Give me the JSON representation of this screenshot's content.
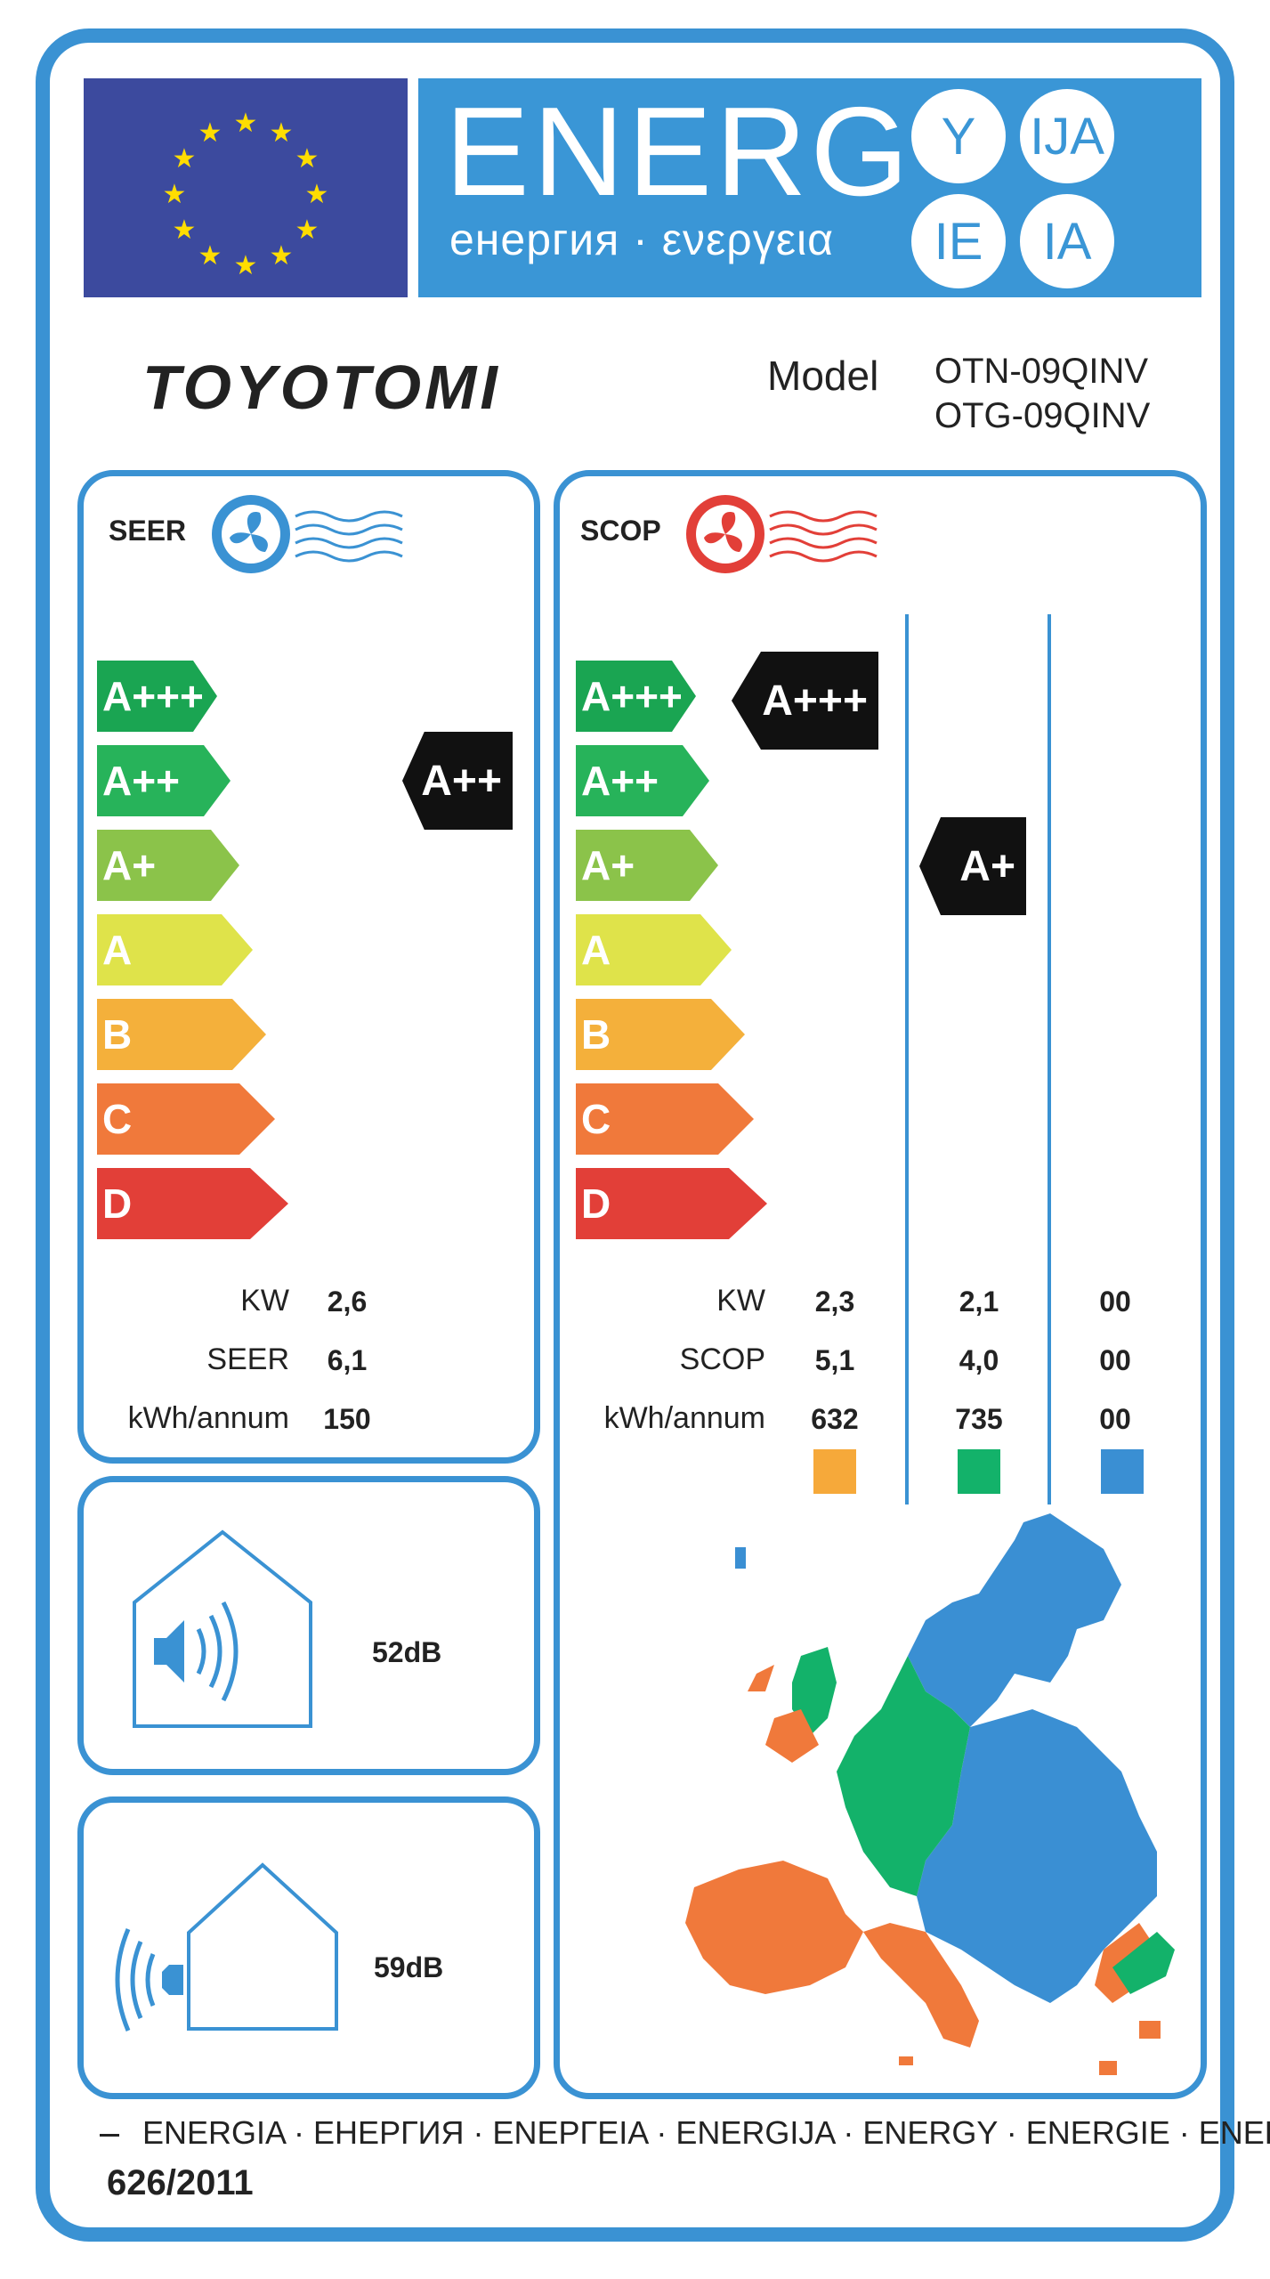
{
  "header": {
    "energy_word": "ENERG",
    "energy_subtitle": "енергия · ενεργεια",
    "suffixes": [
      "Y",
      "IJA",
      "IE",
      "IA"
    ]
  },
  "brand": {
    "name": "TOYOTOMI"
  },
  "model": {
    "label": "Model",
    "values": [
      "OTN-09QINV",
      "OTG-09QINV"
    ]
  },
  "cooling": {
    "title": "SEER",
    "classes": [
      "A+++",
      "A++",
      "A+",
      "A",
      "B",
      "C",
      "D"
    ],
    "class_colors": [
      "#1aa552",
      "#27b35a",
      "#8bc34a",
      "#dfe34a",
      "#f4b03b",
      "#f0793b",
      "#e23f38"
    ],
    "rating": "A++",
    "rows": [
      {
        "label": "KW",
        "value": "2,6"
      },
      {
        "label": "SEER",
        "value": "6,1"
      },
      {
        "label": "kWh/annum",
        "value": "150"
      }
    ]
  },
  "heating": {
    "title": "SCOP",
    "classes": [
      "A+++",
      "A++",
      "A+",
      "A",
      "B",
      "C",
      "D"
    ],
    "ratings": [
      "A+++",
      "A+"
    ],
    "row_labels": [
      "KW",
      "SCOP",
      "kWh/annum"
    ],
    "columns": [
      {
        "values": [
          "2,3",
          "5,1",
          "632"
        ],
        "color": "#f6a93a"
      },
      {
        "values": [
          "2,1",
          "4,0",
          "735"
        ],
        "color": "#13b26a"
      },
      {
        "values": [
          "00",
          "00",
          "00"
        ],
        "color": "#3a8fd3"
      }
    ]
  },
  "noise": {
    "indoor": "52dB",
    "outdoor": "59dB"
  },
  "footer": {
    "languages": "ENERGIA · ЕНЕРГИЯ · ΕΝΕΡΓΕΙΑ · ENERGIJA · ENERGY · ENERGIE · ENERGI",
    "regulation": "626/2011"
  }
}
